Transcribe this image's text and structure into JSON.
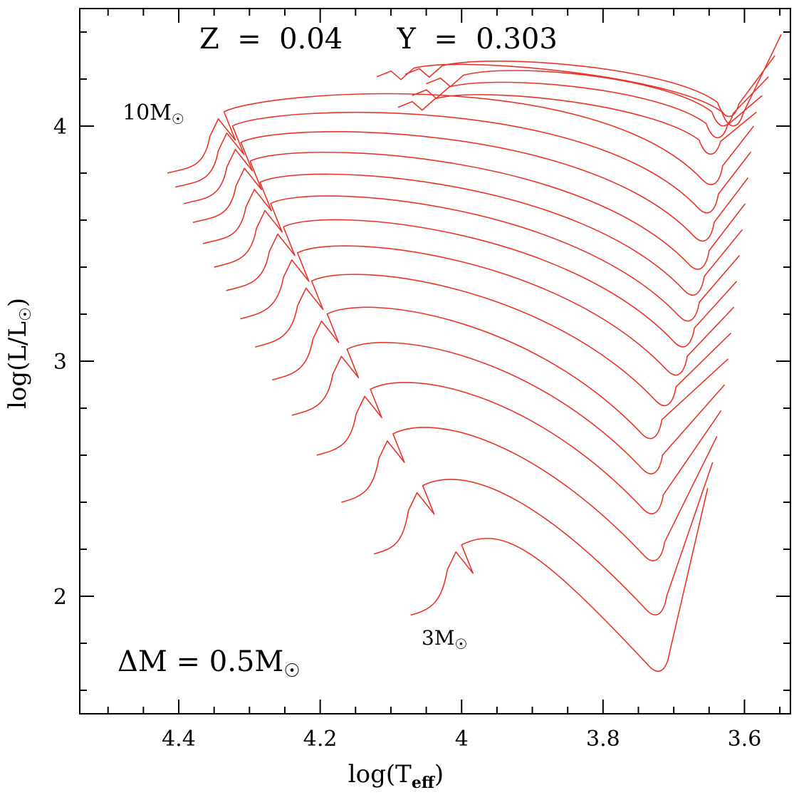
{
  "chart_data": {
    "type": "line",
    "title": "",
    "xlabel": "log(T_eff)",
    "xlabel_main": "log(T",
    "xlabel_sub": "eff",
    "xlabel_close": ")",
    "ylabel": "log(L/L_sun)",
    "ylabel_main": "log(L/L",
    "ylabel_close": ")",
    "xlim": [
      4.54,
      3.535
    ],
    "ylim": [
      1.5,
      4.5
    ],
    "x_ticks": [
      4.4,
      4.2,
      4.0,
      3.8,
      3.6
    ],
    "x_tick_labels": [
      "4.4",
      "4.2",
      "4",
      "3.8",
      "3.6"
    ],
    "x_minor_step": 0.05,
    "y_ticks": [
      2,
      3,
      4
    ],
    "y_tick_labels": [
      "2",
      "3",
      "4"
    ],
    "y_minor_step": 0.2,
    "annotations": {
      "composition": "Z  =  0.04      Y  =  0.303",
      "mass_step": "ΔM  =  0.5M",
      "top_track": "10M",
      "bottom_track": "3M"
    },
    "series_color": "#e8352a",
    "series": [
      {
        "name": "3.0",
        "zams": [
          4.072,
          1.92
        ],
        "kink": [
          3.998,
          2.128
        ],
        "red": [
          3.724,
          1.67
        ],
        "end": [
          3.652,
          2.46
        ]
      },
      {
        "name": "3.5",
        "zams": [
          4.124,
          2.18
        ],
        "kink": [
          4.053,
          2.38
        ],
        "red": [
          3.728,
          1.91
        ],
        "end": [
          3.645,
          2.57
        ]
      },
      {
        "name": "4.0",
        "zams": [
          4.17,
          2.4
        ],
        "kink": [
          4.095,
          2.6
        ],
        "red": [
          3.731,
          2.14
        ],
        "end": [
          3.639,
          2.68
        ]
      },
      {
        "name": "4.5",
        "zams": [
          4.205,
          2.6
        ],
        "kink": [
          4.127,
          2.79
        ],
        "red": [
          3.733,
          2.34
        ],
        "end": [
          3.633,
          2.79
        ]
      },
      {
        "name": "5.0",
        "zams": [
          4.24,
          2.77
        ],
        "kink": [
          4.16,
          2.96
        ],
        "red": [
          3.734,
          2.51
        ],
        "end": [
          3.628,
          2.9
        ]
      },
      {
        "name": "5.5",
        "zams": [
          4.268,
          2.92
        ],
        "kink": [
          4.188,
          3.11
        ],
        "red": [
          3.735,
          2.66
        ],
        "end": [
          3.623,
          3.01
        ]
      },
      {
        "name": "6.0",
        "zams": [
          4.292,
          3.06
        ],
        "kink": [
          4.21,
          3.25
        ],
        "red": [
          3.715,
          2.8
        ],
        "end": [
          3.619,
          3.12
        ]
      },
      {
        "name": "6.5",
        "zams": [
          4.313,
          3.18
        ],
        "kink": [
          4.23,
          3.37
        ],
        "red": [
          3.699,
          2.93
        ],
        "end": [
          3.615,
          3.23
        ]
      },
      {
        "name": "7.0",
        "zams": [
          4.333,
          3.3
        ],
        "kink": [
          4.25,
          3.48
        ],
        "red": [
          3.689,
          3.05
        ],
        "end": [
          3.611,
          3.34
        ]
      },
      {
        "name": "7.5",
        "zams": [
          4.35,
          3.4
        ],
        "kink": [
          4.268,
          3.58
        ],
        "red": [
          3.682,
          3.16
        ],
        "end": [
          3.607,
          3.45
        ]
      },
      {
        "name": "8.0",
        "zams": [
          4.366,
          3.5
        ],
        "kink": [
          4.283,
          3.67
        ],
        "red": [
          3.675,
          3.27
        ],
        "end": [
          3.603,
          3.56
        ]
      },
      {
        "name": "8.5",
        "zams": [
          4.38,
          3.59
        ],
        "kink": [
          4.297,
          3.76
        ],
        "red": [
          3.668,
          3.38
        ],
        "end": [
          3.599,
          3.67
        ]
      },
      {
        "name": "9.0",
        "zams": [
          4.393,
          3.67
        ],
        "kink": [
          4.31,
          3.84
        ],
        "red": [
          3.661,
          3.5
        ],
        "end": [
          3.595,
          3.78
        ]
      },
      {
        "name": "9.5",
        "zams": [
          4.405,
          3.74
        ],
        "kink": [
          4.322,
          3.91
        ],
        "red": [
          3.655,
          3.62
        ],
        "end": [
          3.591,
          3.89
        ]
      },
      {
        "name": "10.0",
        "zams": [
          4.416,
          3.8
        ],
        "kink": [
          4.334,
          3.97
        ],
        "red": [
          3.649,
          3.74
        ],
        "end": [
          3.587,
          4.0
        ]
      }
    ],
    "upper_tracks": [
      {
        "name": "u1",
        "blue": [
          4.09,
          4.08
        ],
        "red": [
          3.65,
          3.88
        ],
        "end": [
          3.583,
          4.06
        ]
      },
      {
        "name": "u2",
        "blue": [
          4.07,
          4.13
        ],
        "red": [
          3.64,
          3.95
        ],
        "end": [
          3.575,
          4.13
        ]
      },
      {
        "name": "u3",
        "blue": [
          4.05,
          4.18
        ],
        "red": [
          3.632,
          4.0
        ],
        "end": [
          3.566,
          4.21
        ]
      },
      {
        "name": "u4",
        "blue": [
          4.08,
          4.22
        ],
        "red": [
          3.624,
          4.04
        ],
        "end": [
          3.557,
          4.3
        ]
      },
      {
        "name": "u5",
        "blue": [
          4.12,
          4.21
        ],
        "red": [
          3.618,
          4.0
        ],
        "end": [
          3.548,
          4.39
        ]
      }
    ]
  }
}
